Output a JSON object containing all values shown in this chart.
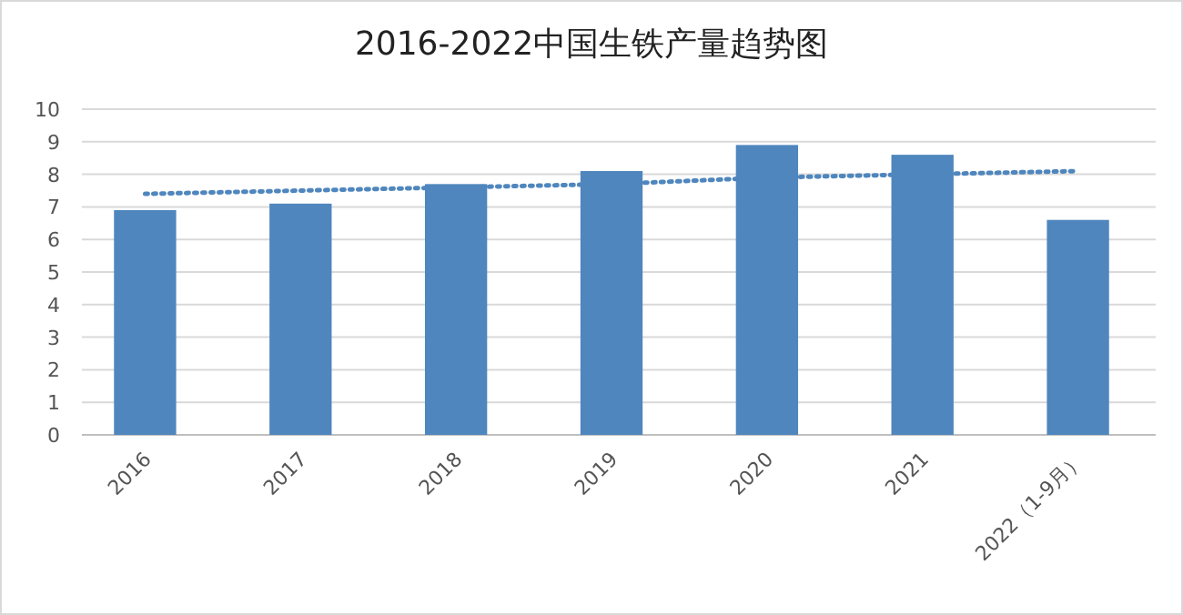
{
  "chart_data": {
    "type": "bar",
    "title": "2016-2022中国生铁产量趋势图",
    "categories": [
      "2016",
      "2017",
      "2018",
      "2019",
      "2020",
      "2021",
      "2022（1-9月）"
    ],
    "series": [
      {
        "color": "#4f86bd",
        "values": [
          6.9,
          7.1,
          7.7,
          8.1,
          8.9,
          8.6,
          6.6
        ]
      },
      {
        "type": "line",
        "color": "#4f86bd",
        "line_style": "dotted",
        "values": [
          7.4,
          7.5,
          7.6,
          7.7,
          7.9,
          8.0,
          8.1
        ]
      }
    ],
    "ylim": [
      0,
      10
    ],
    "yticks": [
      0,
      1,
      2,
      3,
      4,
      5,
      6,
      7,
      8,
      9,
      10
    ],
    "grid": "y"
  }
}
